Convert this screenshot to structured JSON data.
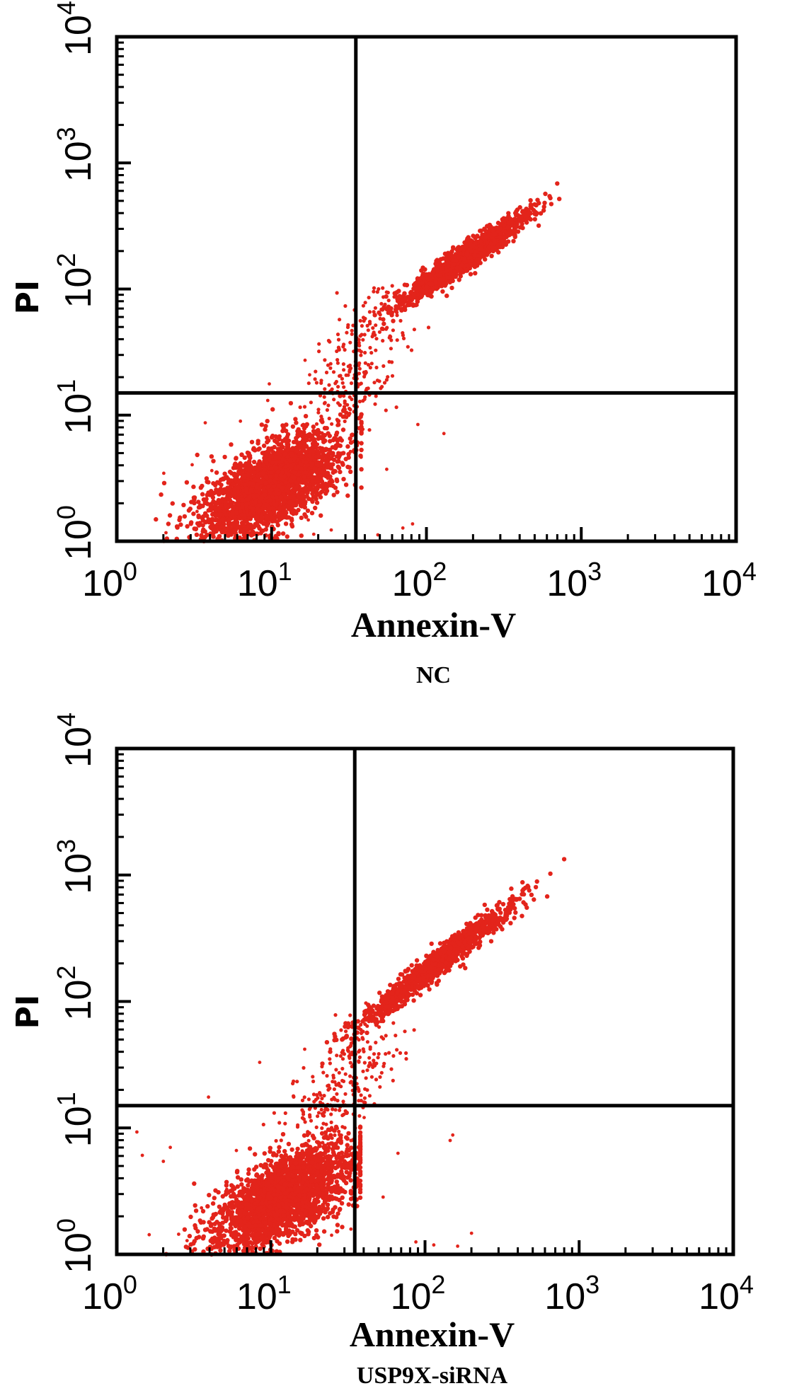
{
  "chart_data": [
    {
      "type": "scatter",
      "title": "",
      "caption": "NC",
      "xlabel": "Annexin-V",
      "ylabel": "PI",
      "xscale": "log",
      "yscale": "log",
      "xlim": [
        1,
        10000
      ],
      "ylim": [
        1,
        10000
      ],
      "x_tick_labels": [
        {
          "base": "10",
          "exp": "0"
        },
        {
          "base": "10",
          "exp": "1"
        },
        {
          "base": "10",
          "exp": "2"
        },
        {
          "base": "10",
          "exp": "3"
        },
        {
          "base": "10",
          "exp": "4"
        }
      ],
      "y_tick_labels": [
        {
          "base": "10",
          "exp": "0"
        },
        {
          "base": "10",
          "exp": "1"
        },
        {
          "base": "10",
          "exp": "2"
        },
        {
          "base": "10",
          "exp": "3"
        },
        {
          "base": "10",
          "exp": "4"
        }
      ],
      "quadrant_gates": {
        "x": 35,
        "y": 15
      },
      "point_color": "#e3241b",
      "grid": false,
      "populations": [
        {
          "description": "Annexin-V negative / PI negative (live)",
          "x_center": 10,
          "y_center": 2.5,
          "x_range": [
            3,
            35
          ],
          "y_range": [
            1,
            12
          ],
          "relative_density": "dense"
        },
        {
          "description": "Annexin-V positive / PI positive (late apoptotic)",
          "x_center": 180,
          "y_center": 180,
          "x_range": [
            50,
            350
          ],
          "y_range": [
            70,
            500
          ],
          "relative_density": "dense"
        },
        {
          "description": "transition between populations",
          "x_range": [
            20,
            60
          ],
          "y_range": [
            8,
            80
          ],
          "relative_density": "sparse"
        }
      ]
    },
    {
      "type": "scatter",
      "title": "",
      "caption": "USP9X-siRNA",
      "xlabel": "Annexin-V",
      "ylabel": "PI",
      "xscale": "log",
      "yscale": "log",
      "xlim": [
        1,
        10000
      ],
      "ylim": [
        1,
        10000
      ],
      "x_tick_labels": [
        {
          "base": "10",
          "exp": "0"
        },
        {
          "base": "10",
          "exp": "1"
        },
        {
          "base": "10",
          "exp": "2"
        },
        {
          "base": "10",
          "exp": "3"
        },
        {
          "base": "10",
          "exp": "4"
        }
      ],
      "y_tick_labels": [
        {
          "base": "10",
          "exp": "0"
        },
        {
          "base": "10",
          "exp": "1"
        },
        {
          "base": "10",
          "exp": "2"
        },
        {
          "base": "10",
          "exp": "3"
        },
        {
          "base": "10",
          "exp": "4"
        }
      ],
      "quadrant_gates": {
        "x": 35,
        "y": 15
      },
      "point_color": "#e3241b",
      "grid": false,
      "populations": [
        {
          "description": "Annexin-V negative / PI negative (live)",
          "x_center": 12,
          "y_center": 2.5,
          "x_range": [
            4,
            35
          ],
          "y_range": [
            1,
            12
          ],
          "relative_density": "dense"
        },
        {
          "description": "Annexin-V positive / PI positive (late apoptotic)",
          "x_center": 120,
          "y_center": 200,
          "x_range": [
            40,
            300
          ],
          "y_range": [
            40,
            800
          ],
          "relative_density": "dense"
        },
        {
          "description": "transition between populations",
          "x_range": [
            15,
            60
          ],
          "y_range": [
            8,
            60
          ],
          "relative_density": "sparse"
        }
      ]
    }
  ]
}
